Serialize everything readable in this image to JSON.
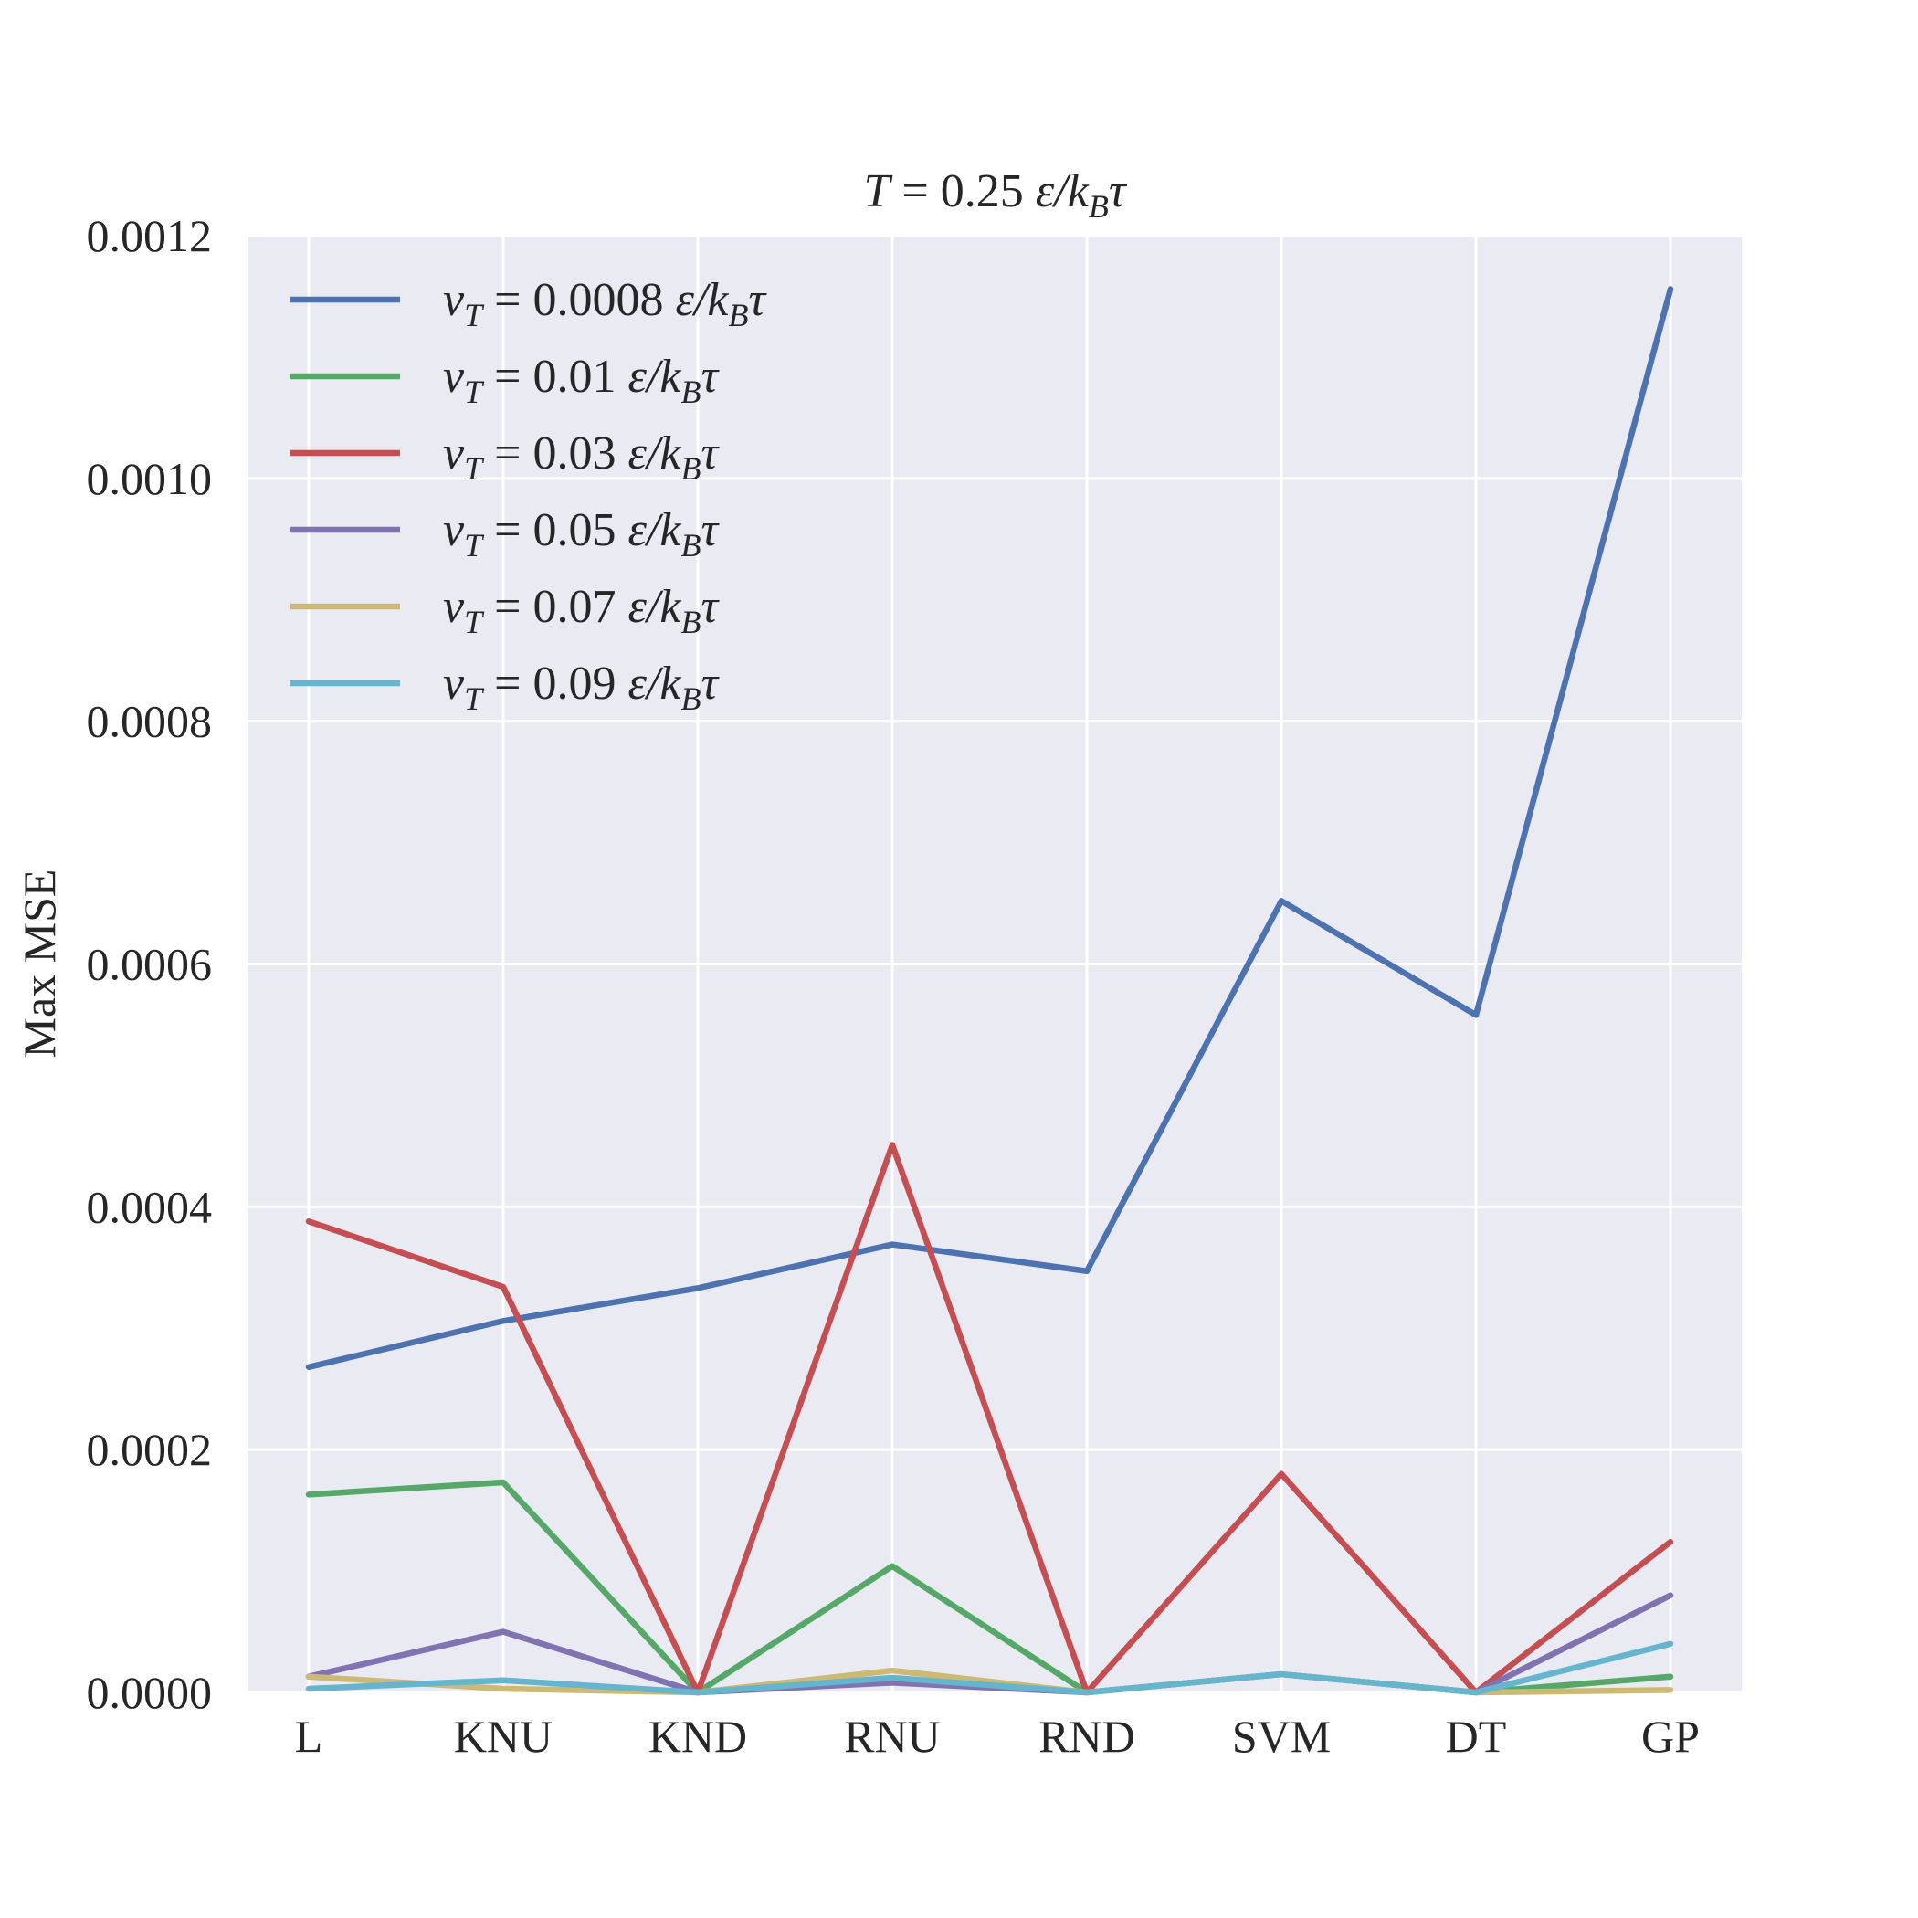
{
  "chart_data": {
    "type": "line",
    "title": "T = 0.25 ε/k_Bτ",
    "xlabel": "",
    "ylabel": "Max MSE",
    "categories": [
      "L",
      "KNU",
      "KND",
      "RNU",
      "RND",
      "SVM",
      "DT",
      "GP"
    ],
    "y_ticks": [
      "0.0000",
      "0.0002",
      "0.0004",
      "0.0006",
      "0.0008",
      "0.0010",
      "0.0012"
    ],
    "ylim": [
      0,
      0.0012
    ],
    "grid": true,
    "legend_position": "top-left",
    "series": [
      {
        "name": "v_T = 0.0008 ε/k_Bτ",
        "value_text": "0.0008",
        "color": "#4c72b0",
        "values": [
          0.000268,
          0.000306,
          0.000333,
          0.000369,
          0.000347,
          0.000652,
          0.000558,
          0.001156
        ]
      },
      {
        "name": "v_T = 0.01 ε/k_Bτ",
        "value_text": "0.01",
        "color": "#55a868",
        "values": [
          0.000163,
          0.000173,
          0.0,
          0.000104,
          0.0,
          1.5e-05,
          0.0,
          1.3e-05
        ]
      },
      {
        "name": "v_T = 0.03 ε/k_Bτ",
        "value_text": "0.03",
        "color": "#c44e52",
        "values": [
          0.000388,
          0.000334,
          0.0,
          0.000451,
          0.0,
          0.00018,
          0.0,
          0.000124
        ]
      },
      {
        "name": "v_T = 0.05 ε/k_Bτ",
        "value_text": "0.05",
        "color": "#8172b2",
        "values": [
          1.3e-05,
          5e-05,
          0.0,
          8e-06,
          0.0,
          1.5e-05,
          0.0,
          8e-05
        ]
      },
      {
        "name": "v_T = 0.07 ε/k_Bτ",
        "value_text": "0.07",
        "color": "#ccb974",
        "values": [
          1.3e-05,
          3e-06,
          0.0,
          1.8e-05,
          0.0,
          1.5e-05,
          0.0,
          2e-06
        ]
      },
      {
        "name": "v_T = 0.09 ε/k_Bτ",
        "value_text": "0.09",
        "color": "#64b5cd",
        "values": [
          3e-06,
          1e-05,
          0.0,
          1.2e-05,
          0.0,
          1.5e-05,
          0.0,
          4e-05
        ]
      }
    ]
  }
}
